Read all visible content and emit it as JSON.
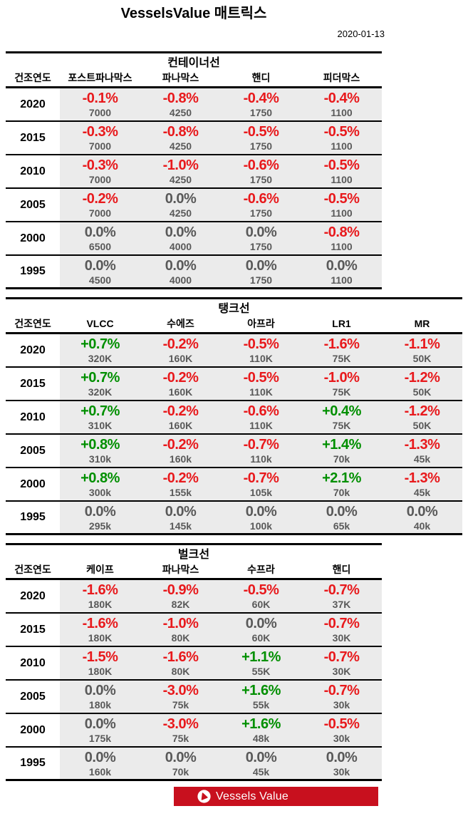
{
  "header": {
    "title": "VesselsValue 매트릭스",
    "date": "2020-01-13"
  },
  "footer": {
    "logo_text": "Vessels Value",
    "logo_icon": "vesselsvalue-sail-icon"
  },
  "colors": {
    "positive": "#008f00",
    "negative": "#e8191c",
    "neutral": "#595959",
    "value_text": "#595959",
    "cell_background": "#ebebeb",
    "banner_red": "#c8101e",
    "border": "#000000"
  },
  "chart_data": [
    {
      "type": "table",
      "name": "container",
      "title": "컨테이너선",
      "year_col_header": "건조연도",
      "columns": [
        "포스트파나막스",
        "파나막스",
        "핸디",
        "피더막스"
      ],
      "full_width": false,
      "rows": [
        {
          "year": "2020",
          "cells": [
            {
              "pct": "-0.1%",
              "val": "7000"
            },
            {
              "pct": "-0.8%",
              "val": "4250"
            },
            {
              "pct": "-0.4%",
              "val": "1750"
            },
            {
              "pct": "-0.4%",
              "val": "1100"
            }
          ]
        },
        {
          "year": "2015",
          "cells": [
            {
              "pct": "-0.3%",
              "val": "7000"
            },
            {
              "pct": "-0.8%",
              "val": "4250"
            },
            {
              "pct": "-0.5%",
              "val": "1750"
            },
            {
              "pct": "-0.5%",
              "val": "1100"
            }
          ]
        },
        {
          "year": "2010",
          "cells": [
            {
              "pct": "-0.3%",
              "val": "7000"
            },
            {
              "pct": "-1.0%",
              "val": "4250"
            },
            {
              "pct": "-0.6%",
              "val": "1750"
            },
            {
              "pct": "-0.5%",
              "val": "1100"
            }
          ]
        },
        {
          "year": "2005",
          "cells": [
            {
              "pct": "-0.2%",
              "val": "7000"
            },
            {
              "pct": "0.0%",
              "val": "4250"
            },
            {
              "pct": "-0.6%",
              "val": "1750"
            },
            {
              "pct": "-0.5%",
              "val": "1100"
            }
          ]
        },
        {
          "year": "2000",
          "cells": [
            {
              "pct": "0.0%",
              "val": "6500"
            },
            {
              "pct": "0.0%",
              "val": "4000"
            },
            {
              "pct": "0.0%",
              "val": "1750"
            },
            {
              "pct": "-0.8%",
              "val": "1100"
            }
          ]
        },
        {
          "year": "1995",
          "cells": [
            {
              "pct": "0.0%",
              "val": "4500"
            },
            {
              "pct": "0.0%",
              "val": "4000"
            },
            {
              "pct": "0.0%",
              "val": "1750"
            },
            {
              "pct": "0.0%",
              "val": "1100"
            }
          ]
        }
      ]
    },
    {
      "type": "table",
      "name": "tanker",
      "title": "탱크선",
      "year_col_header": "건조연도",
      "columns": [
        "VLCC",
        "수에즈",
        "아프라",
        "LR1",
        "MR"
      ],
      "full_width": true,
      "rows": [
        {
          "year": "2020",
          "cells": [
            {
              "pct": "+0.7%",
              "val": "320K"
            },
            {
              "pct": "-0.2%",
              "val": "160K"
            },
            {
              "pct": "-0.5%",
              "val": "110K"
            },
            {
              "pct": "-1.6%",
              "val": "75K"
            },
            {
              "pct": "-1.1%",
              "val": "50K"
            }
          ]
        },
        {
          "year": "2015",
          "cells": [
            {
              "pct": "+0.7%",
              "val": "320K"
            },
            {
              "pct": "-0.2%",
              "val": "160K"
            },
            {
              "pct": "-0.5%",
              "val": "110K"
            },
            {
              "pct": "-1.0%",
              "val": "75K"
            },
            {
              "pct": "-1.2%",
              "val": "50K"
            }
          ]
        },
        {
          "year": "2010",
          "cells": [
            {
              "pct": "+0.7%",
              "val": "310K"
            },
            {
              "pct": "-0.2%",
              "val": "160K"
            },
            {
              "pct": "-0.6%",
              "val": "110K"
            },
            {
              "pct": "+0.4%",
              "val": "75K"
            },
            {
              "pct": "-1.2%",
              "val": "50K"
            }
          ]
        },
        {
          "year": "2005",
          "cells": [
            {
              "pct": "+0.8%",
              "val": "310k"
            },
            {
              "pct": "-0.2%",
              "val": "160k"
            },
            {
              "pct": "-0.7%",
              "val": "110k"
            },
            {
              "pct": "+1.4%",
              "val": "70k"
            },
            {
              "pct": "-1.3%",
              "val": "45k"
            }
          ]
        },
        {
          "year": "2000",
          "cells": [
            {
              "pct": "+0.8%",
              "val": "300k"
            },
            {
              "pct": "-0.2%",
              "val": "155k"
            },
            {
              "pct": "-0.7%",
              "val": "105k"
            },
            {
              "pct": "+2.1%",
              "val": "70k"
            },
            {
              "pct": "-1.3%",
              "val": "45k"
            }
          ]
        },
        {
          "year": "1995",
          "cells": [
            {
              "pct": "0.0%",
              "val": "295k"
            },
            {
              "pct": "0.0%",
              "val": "145k"
            },
            {
              "pct": "0.0%",
              "val": "100k"
            },
            {
              "pct": "0.0%",
              "val": "65k"
            },
            {
              "pct": "0.0%",
              "val": "40k"
            }
          ]
        }
      ]
    },
    {
      "type": "table",
      "name": "bulker",
      "title": "벌크선",
      "year_col_header": "건조연도",
      "columns": [
        "케이프",
        "파나막스",
        "수프라",
        "핸디"
      ],
      "full_width": false,
      "rows": [
        {
          "year": "2020",
          "cells": [
            {
              "pct": "-1.6%",
              "val": "180K"
            },
            {
              "pct": "-0.9%",
              "val": "82K"
            },
            {
              "pct": "-0.5%",
              "val": "60K"
            },
            {
              "pct": "-0.7%",
              "val": "37K"
            }
          ]
        },
        {
          "year": "2015",
          "cells": [
            {
              "pct": "-1.6%",
              "val": "180K"
            },
            {
              "pct": "-1.0%",
              "val": "80K"
            },
            {
              "pct": "0.0%",
              "val": "60K"
            },
            {
              "pct": "-0.7%",
              "val": "30K"
            }
          ]
        },
        {
          "year": "2010",
          "cells": [
            {
              "pct": "-1.5%",
              "val": "180K"
            },
            {
              "pct": "-1.6%",
              "val": "80K"
            },
            {
              "pct": "+1.1%",
              "val": "55K"
            },
            {
              "pct": "-0.7%",
              "val": "30K"
            }
          ]
        },
        {
          "year": "2005",
          "cells": [
            {
              "pct": "0.0%",
              "val": "180k"
            },
            {
              "pct": "-3.0%",
              "val": "75k"
            },
            {
              "pct": "+1.6%",
              "val": "55k"
            },
            {
              "pct": "-0.7%",
              "val": "30k"
            }
          ]
        },
        {
          "year": "2000",
          "cells": [
            {
              "pct": "0.0%",
              "val": "175k"
            },
            {
              "pct": "-3.0%",
              "val": "75k"
            },
            {
              "pct": "+1.6%",
              "val": "48k"
            },
            {
              "pct": "-0.5%",
              "val": "30k"
            }
          ]
        },
        {
          "year": "1995",
          "cells": [
            {
              "pct": "0.0%",
              "val": "160k"
            },
            {
              "pct": "0.0%",
              "val": "70k"
            },
            {
              "pct": "0.0%",
              "val": "45k"
            },
            {
              "pct": "0.0%",
              "val": "30k"
            }
          ]
        }
      ]
    }
  ]
}
